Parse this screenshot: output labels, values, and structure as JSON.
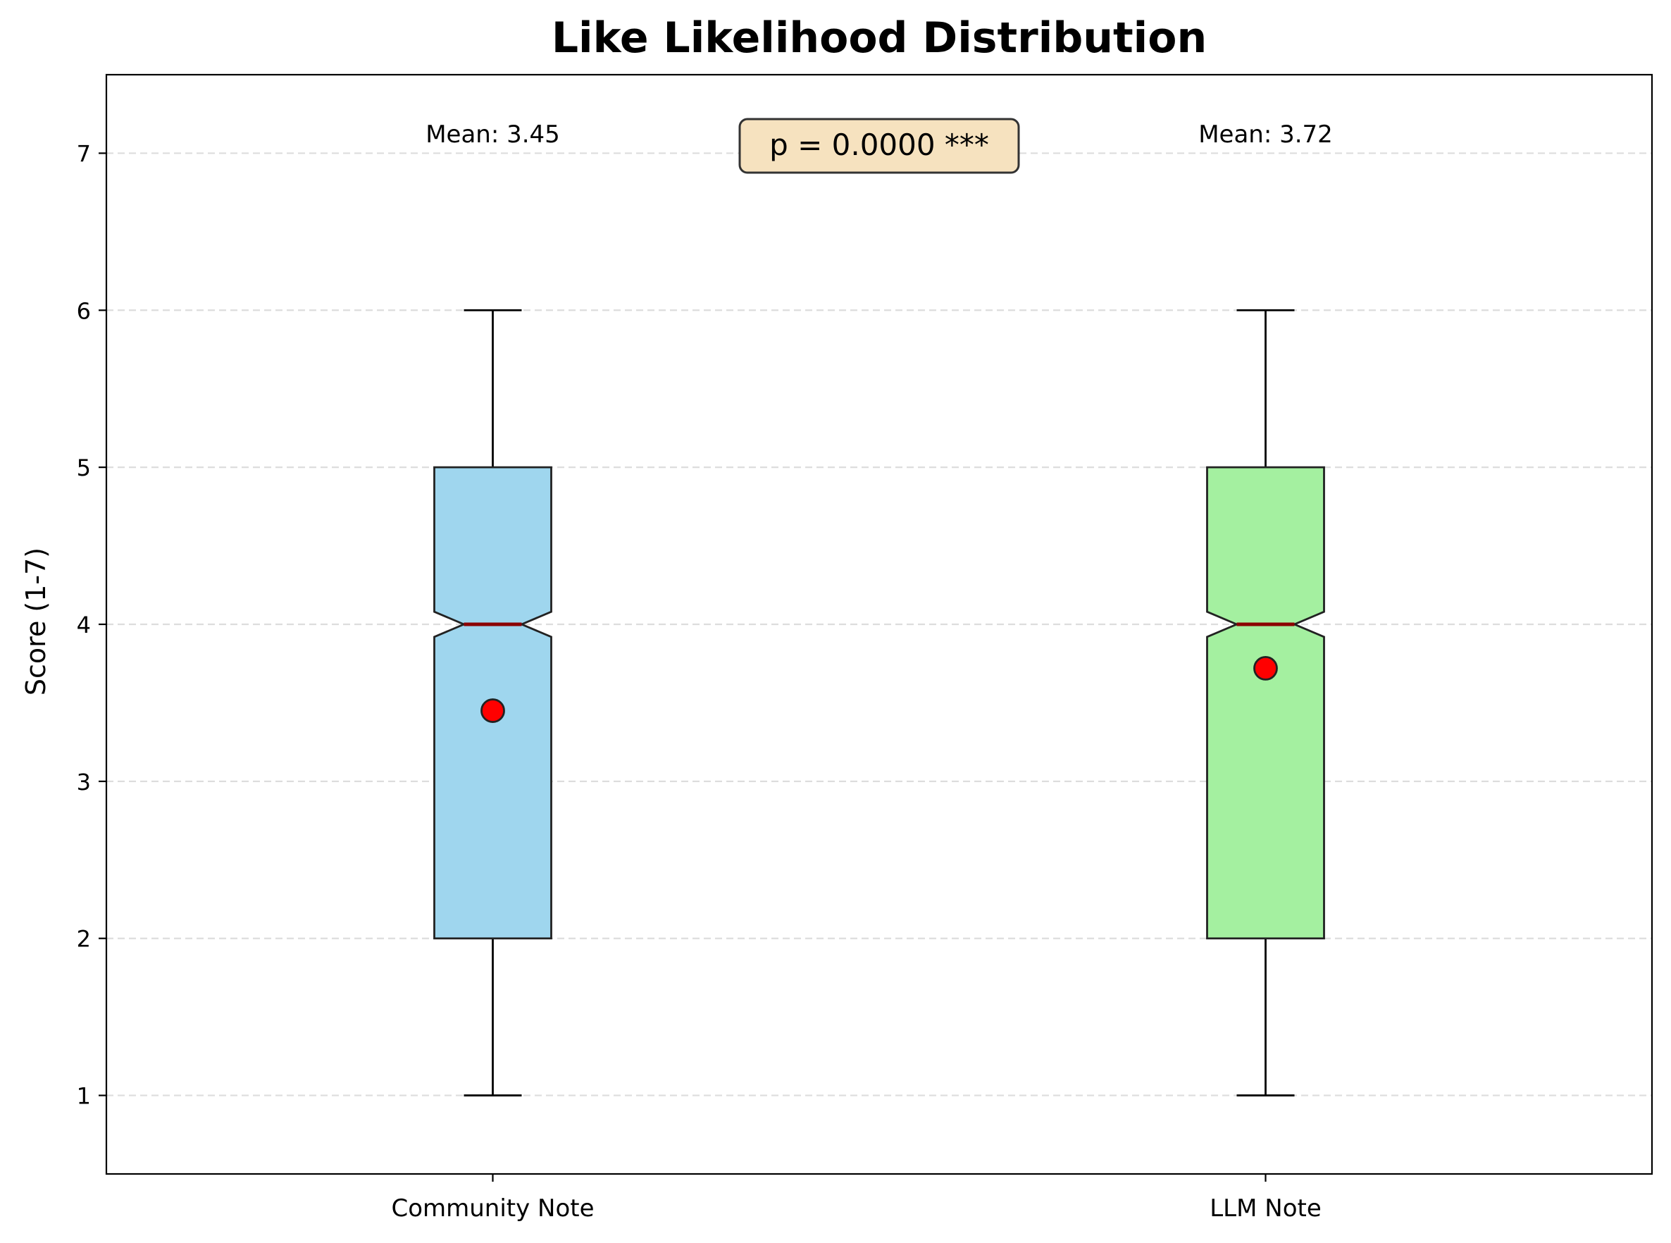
{
  "chart_data": {
    "type": "boxplot",
    "title": "Like Likelihood Distribution",
    "xlabel": "",
    "ylabel": "Score (1-7)",
    "ylim": [
      0.5,
      7.5
    ],
    "yticks": [
      1,
      2,
      3,
      4,
      5,
      6,
      7
    ],
    "grid": "y-dashed",
    "categories": [
      "Community Note",
      "LLM Note"
    ],
    "boxes": [
      {
        "category": "Community Note",
        "whisker_low": 1,
        "q1": 2,
        "median": 4,
        "q3": 5,
        "whisker_high": 6,
        "notch_low": 3.92,
        "notch_high": 4.08,
        "mean": 3.45,
        "mean_label": "Mean: 3.45",
        "color": "#9fd6ee"
      },
      {
        "category": "LLM Note",
        "whisker_low": 1,
        "q1": 2,
        "median": 4,
        "q3": 5,
        "whisker_high": 6,
        "notch_low": 3.92,
        "notch_high": 4.08,
        "mean": 3.72,
        "mean_label": "Mean: 3.72",
        "color": "#a4f0a0"
      }
    ],
    "annotation": "p = 0.0000 ***",
    "colors": {
      "median": "#8b0000",
      "mean_marker": "#ff0000",
      "annotation_box": "#f6e2bf",
      "grid": "#dddddd"
    }
  }
}
